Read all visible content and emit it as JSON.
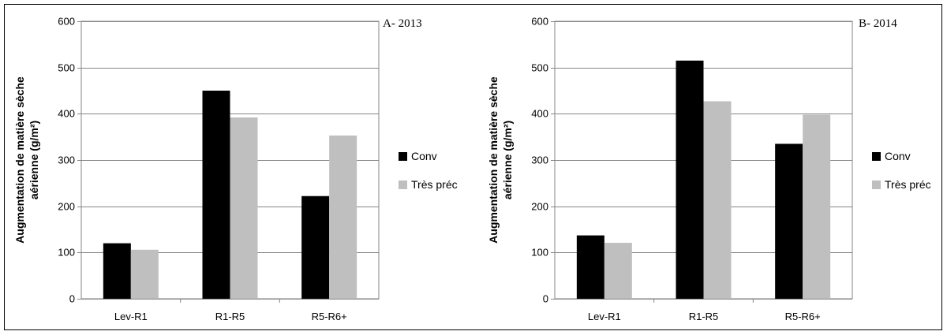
{
  "chart_data": [
    {
      "type": "bar",
      "panel_label": "A- 2013",
      "categories": [
        "Lev-R1",
        "R1-R5",
        "R5-R6+"
      ],
      "series": [
        {
          "name": "Conv",
          "values": [
            120,
            450,
            222
          ]
        },
        {
          "name": "Très préc",
          "values": [
            106,
            392,
            353
          ]
        }
      ],
      "ylabel_line1": "Augmentation de matière sèche",
      "ylabel_line2": "aérienne (g/m²)",
      "ylim": [
        0,
        600
      ],
      "yticks": [
        0,
        100,
        200,
        300,
        400,
        500,
        600
      ],
      "grid": true,
      "legend": "right"
    },
    {
      "type": "bar",
      "panel_label": "B- 2014",
      "categories": [
        "Lev-R1",
        "R1-R5",
        "R5-R6+"
      ],
      "series": [
        {
          "name": "Conv",
          "values": [
            137,
            515,
            335
          ]
        },
        {
          "name": "Très préc",
          "values": [
            121,
            427,
            398
          ]
        }
      ],
      "ylabel_line1": "Augmentation de matière sèche",
      "ylabel_line2": "aérienne (g/m²)",
      "ylim": [
        0,
        600
      ],
      "yticks": [
        0,
        100,
        200,
        300,
        400,
        500,
        600
      ],
      "grid": true,
      "legend": "right"
    }
  ],
  "colors": {
    "Conv": "#000000",
    "Très préc": "#bfbfbf",
    "grid": "#868686"
  }
}
